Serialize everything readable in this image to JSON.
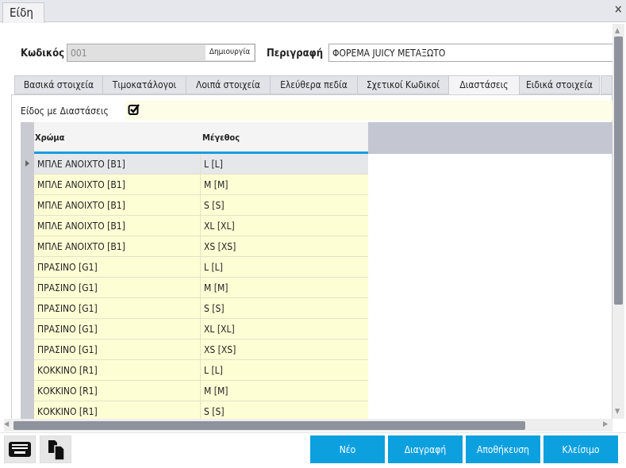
{
  "window": {
    "tab": "Είδη",
    "close": "×"
  },
  "form": {
    "code_label": "Κωδικός",
    "code_value": "001",
    "create_label": "Δημιουργία",
    "desc_label": "Περιγραφή",
    "desc_value": "ΦΟΡΕΜΑ JUICY ΜΕΤΑΞΩΤΟ"
  },
  "tabs": [
    {
      "label": "Βασικά στοιχεία"
    },
    {
      "label": "Τιμοκατάλογοι"
    },
    {
      "label": "Λοιπά στοιχεία"
    },
    {
      "label": "Ελεύθερα πεδία"
    },
    {
      "label": "Σχετικοί Κωδικοί"
    },
    {
      "label": "Διαστάσεις",
      "active": true
    },
    {
      "label": "Ειδικά στοιχεία"
    }
  ],
  "dimensions": {
    "label": "Είδος με Διαστάσεις",
    "checked": true
  },
  "grid": {
    "headers": [
      "Χρώμα",
      "Μέγεθος"
    ],
    "rows": [
      [
        "ΜΠΛΕ ΑΝΟΙΧΤΟ [B1]",
        "L [L]"
      ],
      [
        "ΜΠΛΕ ΑΝΟΙΧΤΟ [B1]",
        "M [M]"
      ],
      [
        "ΜΠΛΕ ΑΝΟΙΧΤΟ [B1]",
        "S [S]"
      ],
      [
        "ΜΠΛΕ ΑΝΟΙΧΤΟ [B1]",
        "XL [XL]"
      ],
      [
        "ΜΠΛΕ ΑΝΟΙΧΤΟ [B1]",
        "XS [XS]"
      ],
      [
        "ΠΡΑΣΙΝΟ [G1]",
        "L [L]"
      ],
      [
        "ΠΡΑΣΙΝΟ [G1]",
        "M [M]"
      ],
      [
        "ΠΡΑΣΙΝΟ [G1]",
        "S [S]"
      ],
      [
        "ΠΡΑΣΙΝΟ [G1]",
        "XL [XL]"
      ],
      [
        "ΠΡΑΣΙΝΟ [G1]",
        "XS [XS]"
      ],
      [
        "ΚΟΚΚΙΝΟ [R1]",
        "L [L]"
      ],
      [
        "ΚΟΚΚΙΝΟ [R1]",
        "M [M]"
      ],
      [
        "ΚΟΚΚΙΝΟ [R1]",
        "S [S]"
      ]
    ]
  },
  "buttons": {
    "new": "Νέο",
    "delete": "Διαγραφή",
    "save": "Αποθήκευση",
    "close": "Κλείσιμο"
  },
  "colors": {
    "accent": "#0ca0df",
    "row_bg": "#fefed5"
  }
}
